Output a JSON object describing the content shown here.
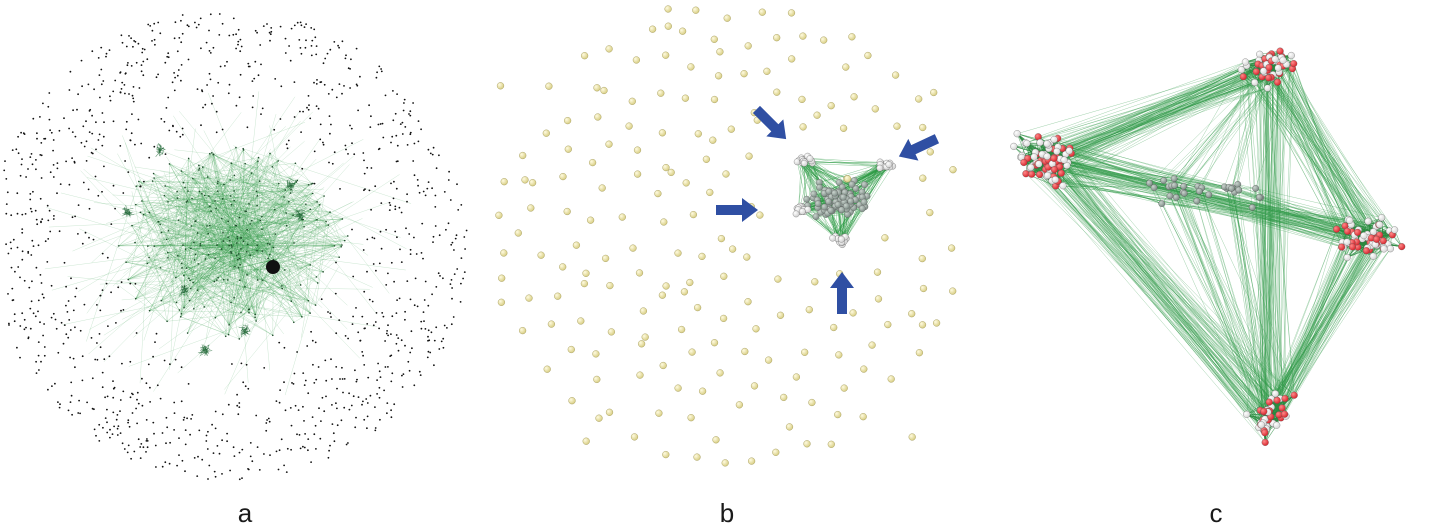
{
  "panels": [
    {
      "id": "a",
      "label": "a"
    },
    {
      "id": "b",
      "label": "b"
    },
    {
      "id": "c",
      "label": "c"
    }
  ],
  "colors": {
    "edge_green": "#2e9a46",
    "dark_node": "#111111",
    "isolated_node": "#d9cf86",
    "community_white": "#f4f4f4",
    "community_red": "#d7282f",
    "community_grey": "#7f8d87",
    "arrow_blue": "#2f4fa3",
    "label_text": "#1a1a1a"
  },
  "icons": [
    "arrow-icon"
  ]
}
